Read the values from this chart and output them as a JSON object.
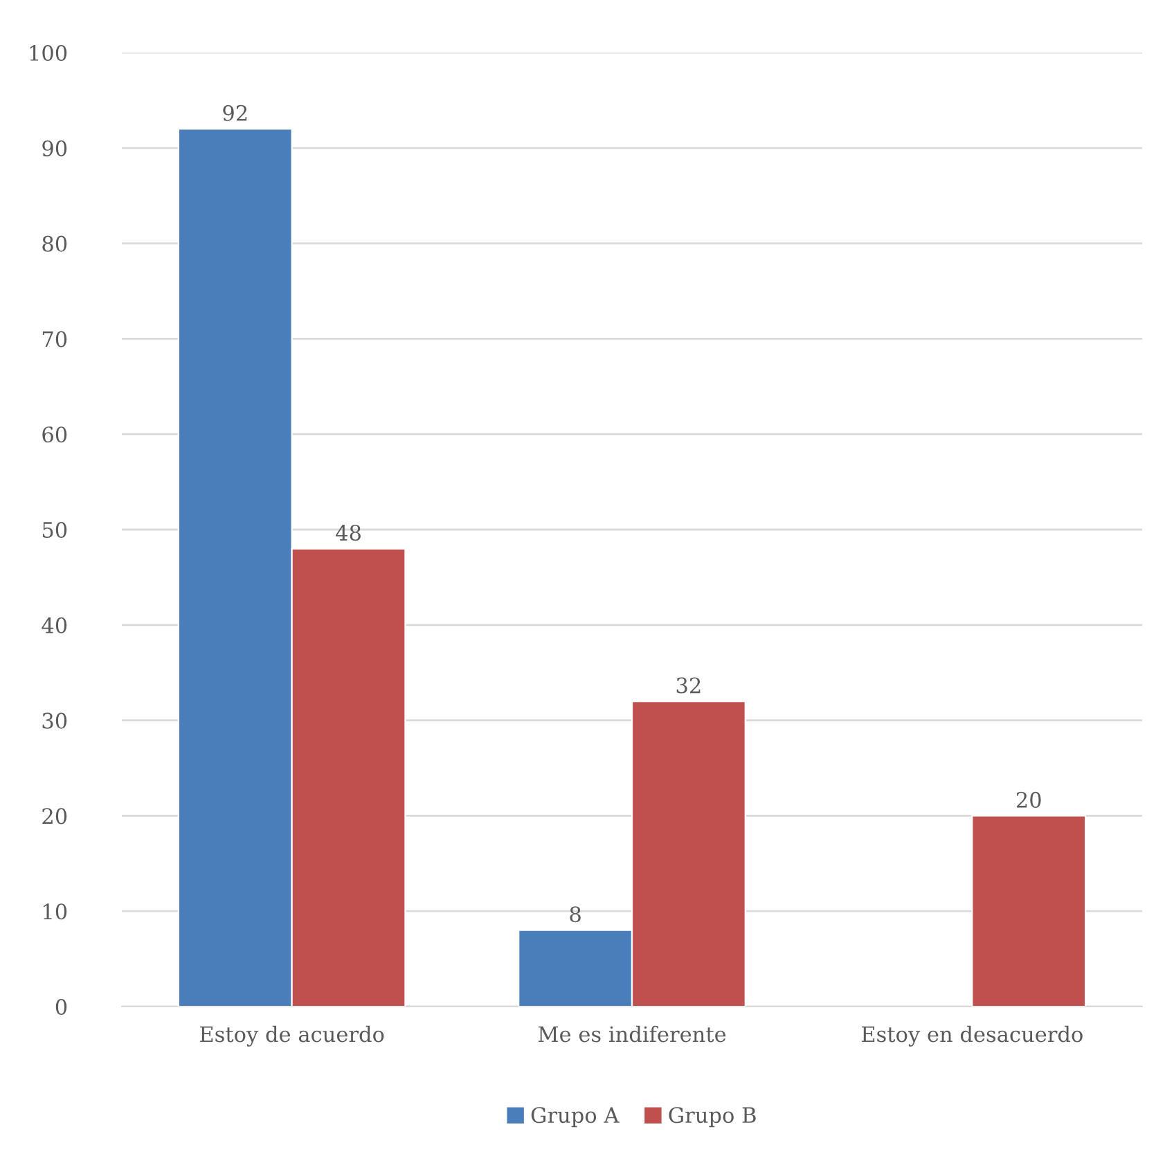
{
  "chart_data": {
    "type": "bar",
    "categories": [
      "Estoy de acuerdo",
      "Me es indiferente",
      "Estoy en desacuerdo"
    ],
    "series": [
      {
        "name": "Grupo A",
        "color": "#4a7ebb",
        "values": [
          92,
          8,
          null
        ]
      },
      {
        "name": "Grupo B",
        "color": "#c0504d",
        "values": [
          48,
          32,
          20
        ]
      }
    ],
    "ylim": [
      0,
      100
    ],
    "yticks": [
      0,
      10,
      20,
      30,
      40,
      50,
      60,
      70,
      80,
      90,
      100
    ],
    "grid": "y",
    "legend": "bottom",
    "data_labels": true
  }
}
